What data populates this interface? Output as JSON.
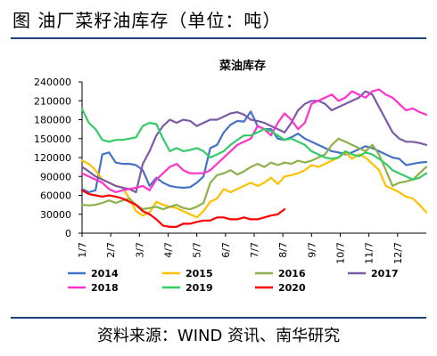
{
  "figure_title": "图 油厂菜籽油库存（单位：吨）",
  "source": "资料来源：WIND 资讯、南华研究",
  "chart_data": {
    "type": "line",
    "title": "菜油库存",
    "xlabel": "",
    "ylabel": "",
    "ylim": [
      0,
      240000
    ],
    "yticks": [
      "0",
      "30000",
      "60000",
      "90000",
      "120000",
      "150000",
      "180000",
      "210000",
      "240000"
    ],
    "x_tick_labels": [
      "1/7",
      "2/7",
      "3/7",
      "4/7",
      "5/7",
      "6/7",
      "7/7",
      "8/7",
      "9/7",
      "10/7",
      "11/7",
      "12/7"
    ],
    "x_unit": "week_index",
    "grid": false,
    "legend": "bottom",
    "series": [
      {
        "name": "2014",
        "color": "#4472c4",
        "x": [
          0,
          1,
          2,
          3,
          4,
          5,
          6,
          7,
          8,
          9,
          10,
          11,
          12,
          13,
          14,
          15,
          16,
          17,
          18,
          19,
          20,
          21,
          22,
          23,
          24,
          25,
          26,
          27,
          28,
          29,
          30,
          31,
          32,
          33,
          34,
          35,
          36,
          37,
          38,
          39,
          40,
          41,
          42,
          43,
          44,
          45,
          46,
          47,
          48,
          49,
          50,
          51
        ],
        "y": [
          70000,
          65000,
          68000,
          125000,
          128000,
          112000,
          110000,
          110000,
          108000,
          100000,
          75000,
          88000,
          80000,
          75000,
          73000,
          72000,
          73000,
          80000,
          90000,
          135000,
          140000,
          160000,
          172000,
          178000,
          177000,
          193000,
          170000,
          165000,
          165000,
          150000,
          148000,
          152000,
          158000,
          150000,
          145000,
          140000,
          135000,
          130000,
          128000,
          125000,
          128000,
          133000,
          138000,
          135000,
          130000,
          125000,
          120000,
          118000,
          108000,
          110000,
          112000,
          113000
        ]
      },
      {
        "name": "2015",
        "color": "#ffc000",
        "x": [
          0,
          1,
          2,
          3,
          4,
          5,
          6,
          7,
          8,
          9,
          10,
          11,
          12,
          13,
          14,
          15,
          16,
          17,
          18,
          19,
          20,
          21,
          22,
          23,
          24,
          25,
          26,
          27,
          28,
          29,
          30,
          31,
          32,
          33,
          34,
          35,
          36,
          37,
          38,
          39,
          40,
          41,
          42,
          43,
          44,
          45,
          46,
          47,
          48,
          49,
          50,
          51
        ],
        "y": [
          115000,
          110000,
          100000,
          85000,
          80000,
          75000,
          73000,
          55000,
          35000,
          28000,
          33000,
          50000,
          45000,
          42000,
          40000,
          35000,
          30000,
          25000,
          35000,
          50000,
          55000,
          70000,
          65000,
          70000,
          75000,
          80000,
          75000,
          80000,
          88000,
          78000,
          90000,
          92000,
          95000,
          100000,
          108000,
          105000,
          110000,
          115000,
          120000,
          128000,
          118000,
          125000,
          120000,
          110000,
          100000,
          75000,
          70000,
          65000,
          58000,
          55000,
          45000,
          33000
        ]
      },
      {
        "name": "2016",
        "color": "#a5a5a5",
        "draw_color": "#8db04b",
        "x": [
          0,
          1,
          2,
          3,
          4,
          5,
          6,
          7,
          8,
          9,
          10,
          11,
          12,
          13,
          14,
          15,
          16,
          17,
          18,
          19,
          20,
          21,
          22,
          23,
          24,
          25,
          26,
          27,
          28,
          29,
          30,
          31,
          32,
          33,
          34,
          35,
          36,
          37,
          38,
          39,
          40,
          41,
          42,
          43,
          44,
          45,
          46,
          47,
          48,
          49,
          50,
          51
        ],
        "y": [
          45000,
          44000,
          45000,
          48000,
          52000,
          48000,
          52000,
          55000,
          45000,
          38000,
          40000,
          42000,
          38000,
          42000,
          45000,
          40000,
          38000,
          42000,
          48000,
          80000,
          92000,
          95000,
          100000,
          93000,
          98000,
          105000,
          110000,
          105000,
          112000,
          108000,
          112000,
          110000,
          115000,
          112000,
          115000,
          120000,
          125000,
          140000,
          150000,
          145000,
          140000,
          135000,
          130000,
          140000,
          125000,
          100000,
          75000,
          80000,
          82000,
          85000,
          95000,
          105000
        ]
      },
      {
        "name": "2017",
        "color": "#7b5aa6",
        "x": [
          0,
          1,
          2,
          3,
          4,
          5,
          6,
          7,
          8,
          9,
          10,
          11,
          12,
          13,
          14,
          15,
          16,
          17,
          18,
          19,
          20,
          21,
          22,
          23,
          24,
          25,
          26,
          27,
          28,
          29,
          30,
          31,
          32,
          33,
          34,
          35,
          36,
          37,
          38,
          39,
          40,
          41,
          42,
          43,
          44,
          45,
          46,
          47,
          48,
          49,
          50,
          51
        ],
        "y": [
          105000,
          98000,
          90000,
          85000,
          80000,
          75000,
          72000,
          70000,
          65000,
          110000,
          130000,
          155000,
          170000,
          180000,
          175000,
          180000,
          178000,
          170000,
          175000,
          180000,
          180000,
          185000,
          190000,
          192000,
          188000,
          180000,
          178000,
          175000,
          170000,
          165000,
          160000,
          175000,
          195000,
          205000,
          210000,
          210000,
          205000,
          195000,
          200000,
          205000,
          210000,
          215000,
          225000,
          220000,
          200000,
          180000,
          160000,
          150000,
          145000,
          145000,
          143000,
          140000
        ]
      },
      {
        "name": "2018",
        "color": "#ff33cc",
        "x": [
          0,
          1,
          2,
          3,
          4,
          5,
          6,
          7,
          8,
          9,
          10,
          11,
          12,
          13,
          14,
          15,
          16,
          17,
          18,
          19,
          20,
          21,
          22,
          23,
          24,
          25,
          26,
          27,
          28,
          29,
          30,
          31,
          32,
          33,
          34,
          35,
          36,
          37,
          38,
          39,
          40,
          41,
          42,
          43,
          44,
          45,
          46,
          47,
          48,
          49,
          50,
          51
        ],
        "y": [
          95000,
          90000,
          85000,
          80000,
          70000,
          65000,
          68000,
          70000,
          72000,
          75000,
          68000,
          85000,
          95000,
          105000,
          110000,
          100000,
          95000,
          95000,
          95000,
          100000,
          110000,
          120000,
          130000,
          140000,
          145000,
          150000,
          170000,
          165000,
          155000,
          175000,
          190000,
          180000,
          165000,
          175000,
          205000,
          210000,
          215000,
          220000,
          210000,
          215000,
          225000,
          220000,
          215000,
          225000,
          228000,
          220000,
          215000,
          205000,
          195000,
          198000,
          192000,
          188000
        ]
      },
      {
        "name": "2019",
        "color": "#33cc66",
        "x": [
          0,
          1,
          2,
          3,
          4,
          5,
          6,
          7,
          8,
          9,
          10,
          11,
          12,
          13,
          14,
          15,
          16,
          17,
          18,
          19,
          20,
          21,
          22,
          23,
          24,
          25,
          26,
          27,
          28,
          29,
          30,
          31,
          32,
          33,
          34,
          35,
          36,
          37,
          38,
          39,
          40,
          41,
          42,
          43,
          44,
          45,
          46,
          47,
          48,
          49,
          50,
          51
        ],
        "y": [
          197000,
          175000,
          165000,
          148000,
          145000,
          148000,
          148000,
          150000,
          152000,
          170000,
          175000,
          173000,
          150000,
          130000,
          135000,
          130000,
          132000,
          135000,
          130000,
          120000,
          125000,
          130000,
          140000,
          148000,
          155000,
          155000,
          160000,
          165000,
          162000,
          155000,
          148000,
          150000,
          145000,
          140000,
          130000,
          125000,
          120000,
          118000,
          120000,
          130000,
          125000,
          122000,
          128000,
          125000,
          118000,
          110000,
          100000,
          95000,
          90000,
          85000,
          88000,
          95000
        ]
      },
      {
        "name": "2020",
        "color": "#ff0000",
        "x": [
          0,
          1,
          2,
          3,
          4,
          5,
          6,
          7,
          8,
          9,
          10,
          11,
          12,
          13,
          14,
          15,
          16,
          17,
          18,
          19,
          20,
          21,
          22,
          23,
          24,
          25,
          26,
          27,
          28,
          29,
          30
        ],
        "y": [
          68000,
          62000,
          60000,
          58000,
          60000,
          58000,
          55000,
          50000,
          45000,
          35000,
          30000,
          22000,
          12000,
          10000,
          10000,
          15000,
          15000,
          18000,
          20000,
          20000,
          25000,
          25000,
          22000,
          22000,
          25000,
          22000,
          22000,
          25000,
          28000,
          30000,
          38000
        ]
      }
    ]
  }
}
